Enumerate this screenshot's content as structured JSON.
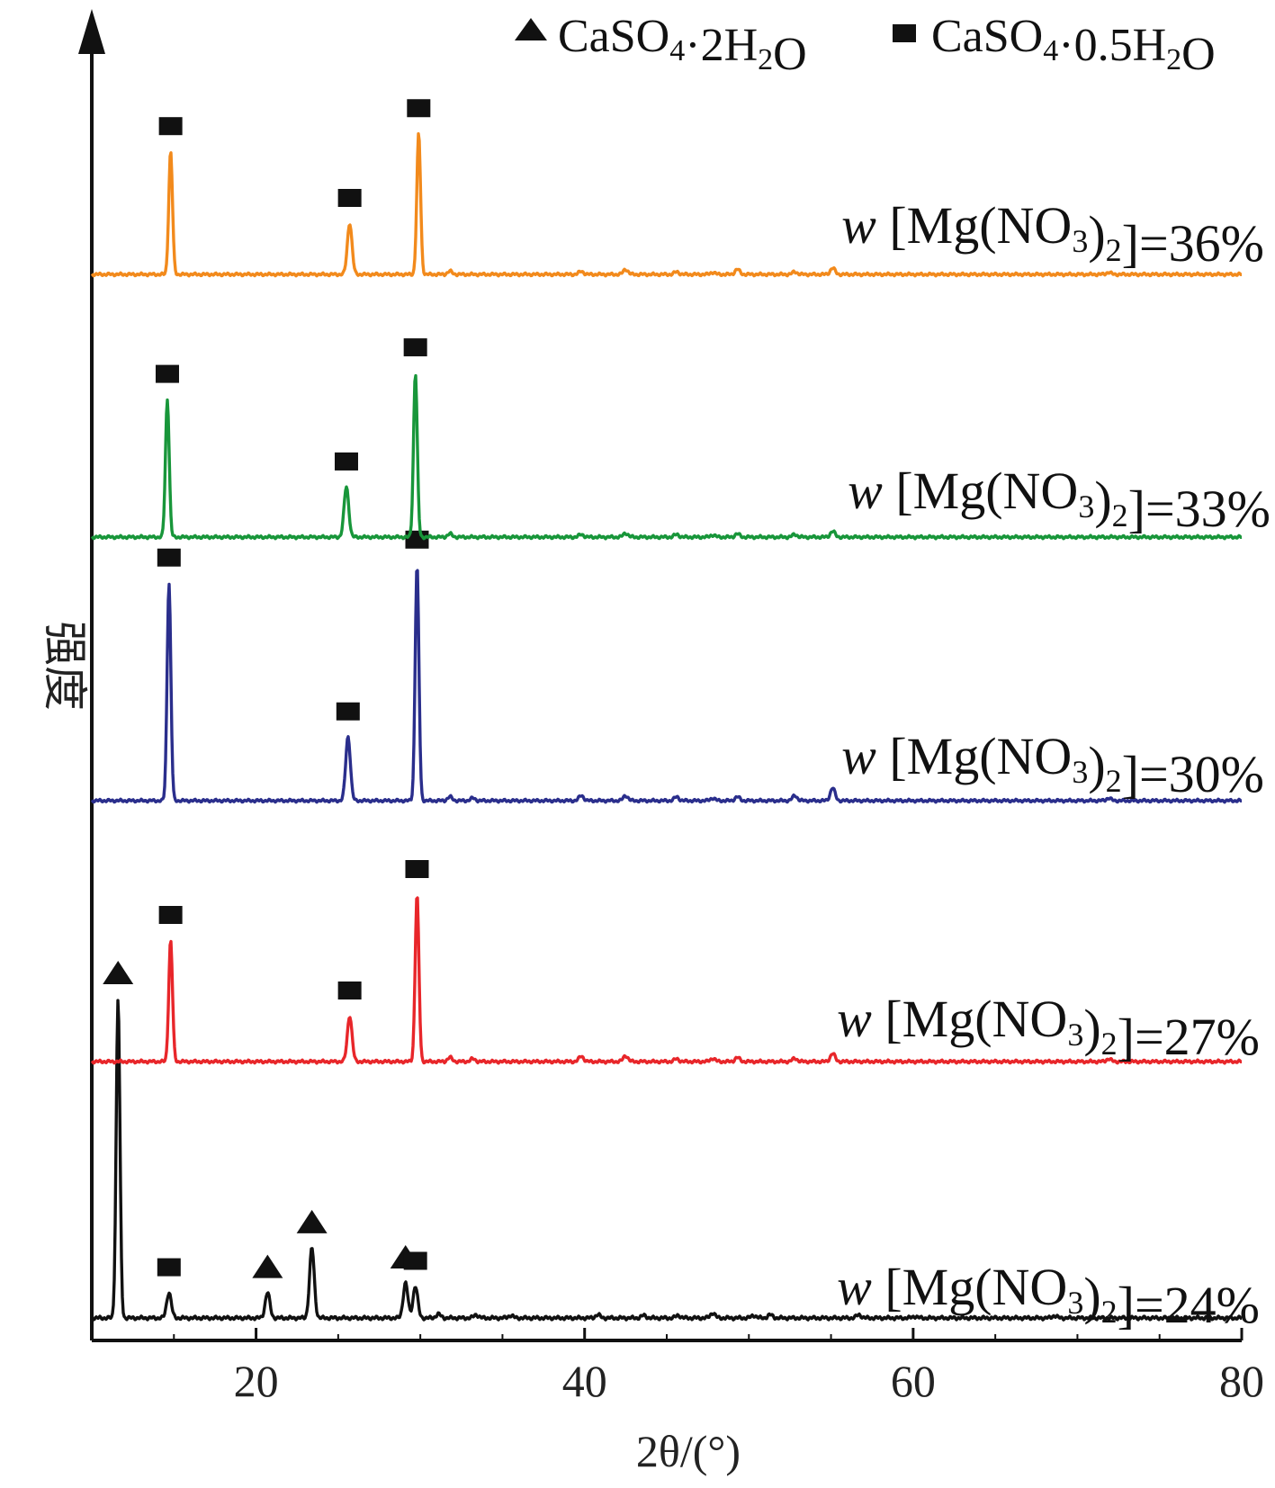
{
  "chart_data": {
    "type": "line",
    "xlabel": "2θ/(°)",
    "ylabel": "强度",
    "xlim": [
      10,
      80
    ],
    "xticks": [
      20,
      40,
      60,
      80
    ],
    "grid": false,
    "legend": {
      "placement": "top-right",
      "entries": [
        {
          "marker": "triangle",
          "label": "CaSO4·2H2O"
        },
        {
          "marker": "square",
          "label": "CaSO4·0.5H2O"
        }
      ]
    },
    "series": [
      {
        "name": "w[Mg(NO3)2]=24%",
        "label_prefix": "w",
        "label_body": "[Mg(NO3)2]",
        "label_value": "=24%",
        "color": "#111111",
        "peaks": [
          [
            11.6,
            100
          ],
          [
            14.7,
            8
          ],
          [
            20.7,
            8
          ],
          [
            23.4,
            22
          ],
          [
            29.1,
            11
          ],
          [
            29.7,
            10
          ],
          [
            31.1,
            1.2
          ],
          [
            33.4,
            1
          ],
          [
            35.5,
            0.8
          ],
          [
            40.8,
            1
          ],
          [
            43.6,
            0.8
          ],
          [
            45.7,
            0.8
          ],
          [
            47.8,
            1.6
          ],
          [
            50.3,
            0.8
          ],
          [
            51.3,
            1
          ],
          [
            56.7,
            1
          ],
          [
            60.1,
            0.5
          ],
          [
            68.6,
            0.7
          ]
        ],
        "markers": [
          {
            "x": 11.6,
            "type": "triangle"
          },
          {
            "x": 14.7,
            "type": "square"
          },
          {
            "x": 20.7,
            "type": "triangle"
          },
          {
            "x": 23.4,
            "type": "triangle"
          },
          {
            "x": 29.1,
            "type": "triangle"
          },
          {
            "x": 29.7,
            "type": "square"
          }
        ]
      },
      {
        "name": "w[Mg(NO3)2]=27%",
        "label_prefix": "w",
        "label_body": "[Mg(NO3)2]",
        "label_value": "=27%",
        "color": "#e8262a",
        "peaks": [
          [
            14.8,
            45
          ],
          [
            25.7,
            17
          ],
          [
            29.8,
            62
          ],
          [
            31.8,
            1.5
          ],
          [
            33.2,
            1
          ],
          [
            39.8,
            2
          ],
          [
            42.5,
            2.2
          ],
          [
            45.6,
            1
          ],
          [
            47.8,
            1.2
          ],
          [
            49.3,
            1.5
          ],
          [
            52.8,
            1.2
          ],
          [
            55.1,
            3
          ],
          [
            71.9,
            1
          ]
        ],
        "markers": [
          {
            "x": 14.8,
            "type": "square"
          },
          {
            "x": 25.7,
            "type": "square"
          },
          {
            "x": 29.8,
            "type": "square"
          }
        ]
      },
      {
        "name": "w[Mg(NO3)2]=30%",
        "label_prefix": "w",
        "label_body": "[Mg(NO3)2]",
        "label_value": "=30%",
        "color": "#2a2e8c",
        "peaks": [
          [
            14.7,
            85
          ],
          [
            25.6,
            25
          ],
          [
            29.8,
            92
          ],
          [
            31.8,
            1.5
          ],
          [
            33.2,
            1
          ],
          [
            39.8,
            2
          ],
          [
            42.5,
            2
          ],
          [
            45.6,
            1.5
          ],
          [
            47.8,
            1
          ],
          [
            49.3,
            1.5
          ],
          [
            52.8,
            2
          ],
          [
            55.1,
            5
          ],
          [
            71.9,
            1
          ]
        ],
        "markers": [
          {
            "x": 14.7,
            "type": "square"
          },
          {
            "x": 25.6,
            "type": "square"
          },
          {
            "x": 29.8,
            "type": "square"
          }
        ]
      },
      {
        "name": "w[Mg(NO3)2]=33%",
        "label_prefix": "w",
        "label_body": "[Mg(NO3)2]",
        "label_value": "=33%",
        "color": "#18963a",
        "peaks": [
          [
            14.6,
            52
          ],
          [
            25.5,
            19
          ],
          [
            29.7,
            62
          ],
          [
            31.8,
            1.2
          ],
          [
            39.8,
            1
          ],
          [
            42.5,
            1.5
          ],
          [
            45.6,
            1
          ],
          [
            47.8,
            0.8
          ],
          [
            49.3,
            1.2
          ],
          [
            52.8,
            1
          ],
          [
            55.1,
            2.2
          ]
        ],
        "markers": [
          {
            "x": 14.6,
            "type": "square"
          },
          {
            "x": 25.5,
            "type": "square"
          },
          {
            "x": 29.7,
            "type": "square"
          }
        ]
      },
      {
        "name": "w[Mg(NO3)2]=36%",
        "label_prefix": "w",
        "label_body": "[Mg(NO3)2]",
        "label_value": "=36%",
        "color": "#f28a1c",
        "peaks": [
          [
            14.8,
            48
          ],
          [
            25.7,
            20
          ],
          [
            29.9,
            55
          ],
          [
            31.8,
            1.2
          ],
          [
            39.8,
            1.2
          ],
          [
            42.5,
            2
          ],
          [
            45.6,
            1
          ],
          [
            47.8,
            0.8
          ],
          [
            49.3,
            2
          ],
          [
            52.8,
            1
          ],
          [
            55.1,
            2.5
          ],
          [
            71.9,
            0.8
          ]
        ],
        "markers": [
          {
            "x": 14.8,
            "type": "square"
          },
          {
            "x": 25.7,
            "type": "square"
          },
          {
            "x": 29.9,
            "type": "square"
          }
        ]
      }
    ]
  }
}
